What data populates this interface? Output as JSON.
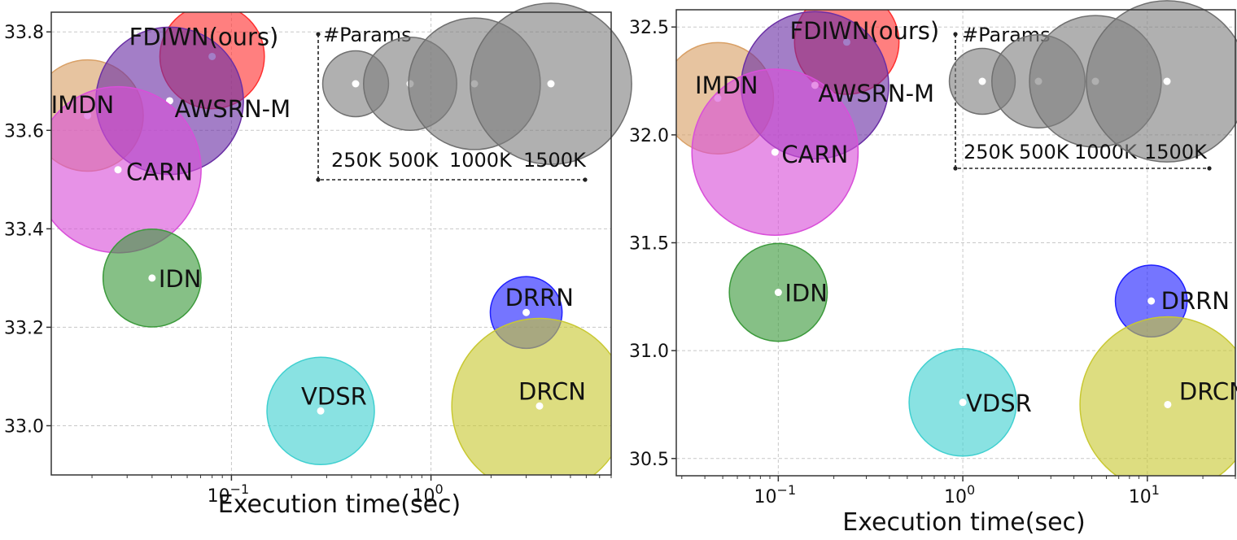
{
  "chart_data": [
    {
      "type": "scatter",
      "xlabel": "Execution time(sec)",
      "xscale": "log",
      "xlim": [
        0.0125,
        8.0
      ],
      "ylim": [
        32.9,
        33.84
      ],
      "yticks": [
        33.0,
        33.2,
        33.4,
        33.6,
        33.8
      ],
      "ytick_labels": [
        "33.0",
        "33.2",
        "33.4",
        "33.6",
        "33.8"
      ],
      "xticks": [
        0.1,
        1
      ],
      "xtick_labels": [
        {
          "base": "10",
          "exp": "−1"
        },
        {
          "base": "10",
          "exp": "0"
        }
      ],
      "grid": true,
      "points": [
        {
          "name": "FDIWN(ours)",
          "x": 0.08,
          "y": 33.75,
          "params_k": 629,
          "color": "#ff3030"
        },
        {
          "name": "IMDN",
          "x": 0.019,
          "y": 33.63,
          "params_k": 715,
          "color": "#d9a066"
        },
        {
          "name": "AWSRN-M",
          "x": 0.049,
          "y": 33.66,
          "params_k": 1254,
          "color": "#6a2fa5"
        },
        {
          "name": "CARN",
          "x": 0.027,
          "y": 33.52,
          "params_k": 1592,
          "color": "#d94fd9"
        },
        {
          "name": "IDN",
          "x": 0.04,
          "y": 33.3,
          "params_k": 553,
          "color": "#3c9a3c"
        },
        {
          "name": "DRRN",
          "x": 3.0,
          "y": 33.23,
          "params_k": 297,
          "color": "#2020ff"
        },
        {
          "name": "VDSR",
          "x": 0.28,
          "y": 33.03,
          "params_k": 665,
          "color": "#40d0d0"
        },
        {
          "name": "DRCN",
          "x": 3.5,
          "y": 33.04,
          "params_k": 1774,
          "color": "#c8c832"
        }
      ],
      "legend": {
        "title": "#Params",
        "placement": "top-right",
        "entries": [
          {
            "label": "250K",
            "params_k": 250
          },
          {
            "label": "500K",
            "params_k": 500
          },
          {
            "label": "1000K",
            "params_k": 1000
          },
          {
            "label": "1500K",
            "params_k": 1500
          }
        ]
      }
    },
    {
      "type": "scatter",
      "xlabel": "Execution time(sec)",
      "xscale": "log",
      "xlim": [
        0.028,
        30.0
      ],
      "ylim": [
        30.42,
        32.58
      ],
      "yticks": [
        30.5,
        31.0,
        31.5,
        32.0,
        32.5
      ],
      "ytick_labels": [
        "30.5",
        "31.0",
        "31.5",
        "32.0",
        "32.5"
      ],
      "xticks": [
        0.1,
        1,
        10
      ],
      "xtick_labels": [
        {
          "base": "10",
          "exp": "−1"
        },
        {
          "base": "10",
          "exp": "0"
        },
        {
          "base": "10",
          "exp": "1"
        }
      ],
      "grid": true,
      "points": [
        {
          "name": "FDIWN(ours)",
          "x": 0.235,
          "y": 32.43,
          "params_k": 629,
          "color": "#ff3030"
        },
        {
          "name": "IMDN",
          "x": 0.047,
          "y": 32.17,
          "params_k": 715,
          "color": "#d9a066"
        },
        {
          "name": "AWSRN-M",
          "x": 0.158,
          "y": 32.23,
          "params_k": 1254,
          "color": "#6a2fa5"
        },
        {
          "name": "CARN",
          "x": 0.096,
          "y": 31.92,
          "params_k": 1592,
          "color": "#d94fd9"
        },
        {
          "name": "IDN",
          "x": 0.1,
          "y": 31.27,
          "params_k": 553,
          "color": "#3c9a3c"
        },
        {
          "name": "DRRN",
          "x": 10.5,
          "y": 31.23,
          "params_k": 297,
          "color": "#2020ff"
        },
        {
          "name": "VDSR",
          "x": 1.0,
          "y": 30.76,
          "params_k": 665,
          "color": "#40d0d0"
        },
        {
          "name": "DRCN",
          "x": 12.9,
          "y": 30.75,
          "params_k": 1774,
          "color": "#c8c832"
        }
      ],
      "legend": {
        "title": "#Params",
        "placement": "top-right",
        "entries": [
          {
            "label": "250K",
            "params_k": 250
          },
          {
            "label": "500K",
            "params_k": 500
          },
          {
            "label": "1000K",
            "params_k": 1000
          },
          {
            "label": "1500K",
            "params_k": 1500
          }
        ]
      }
    }
  ]
}
